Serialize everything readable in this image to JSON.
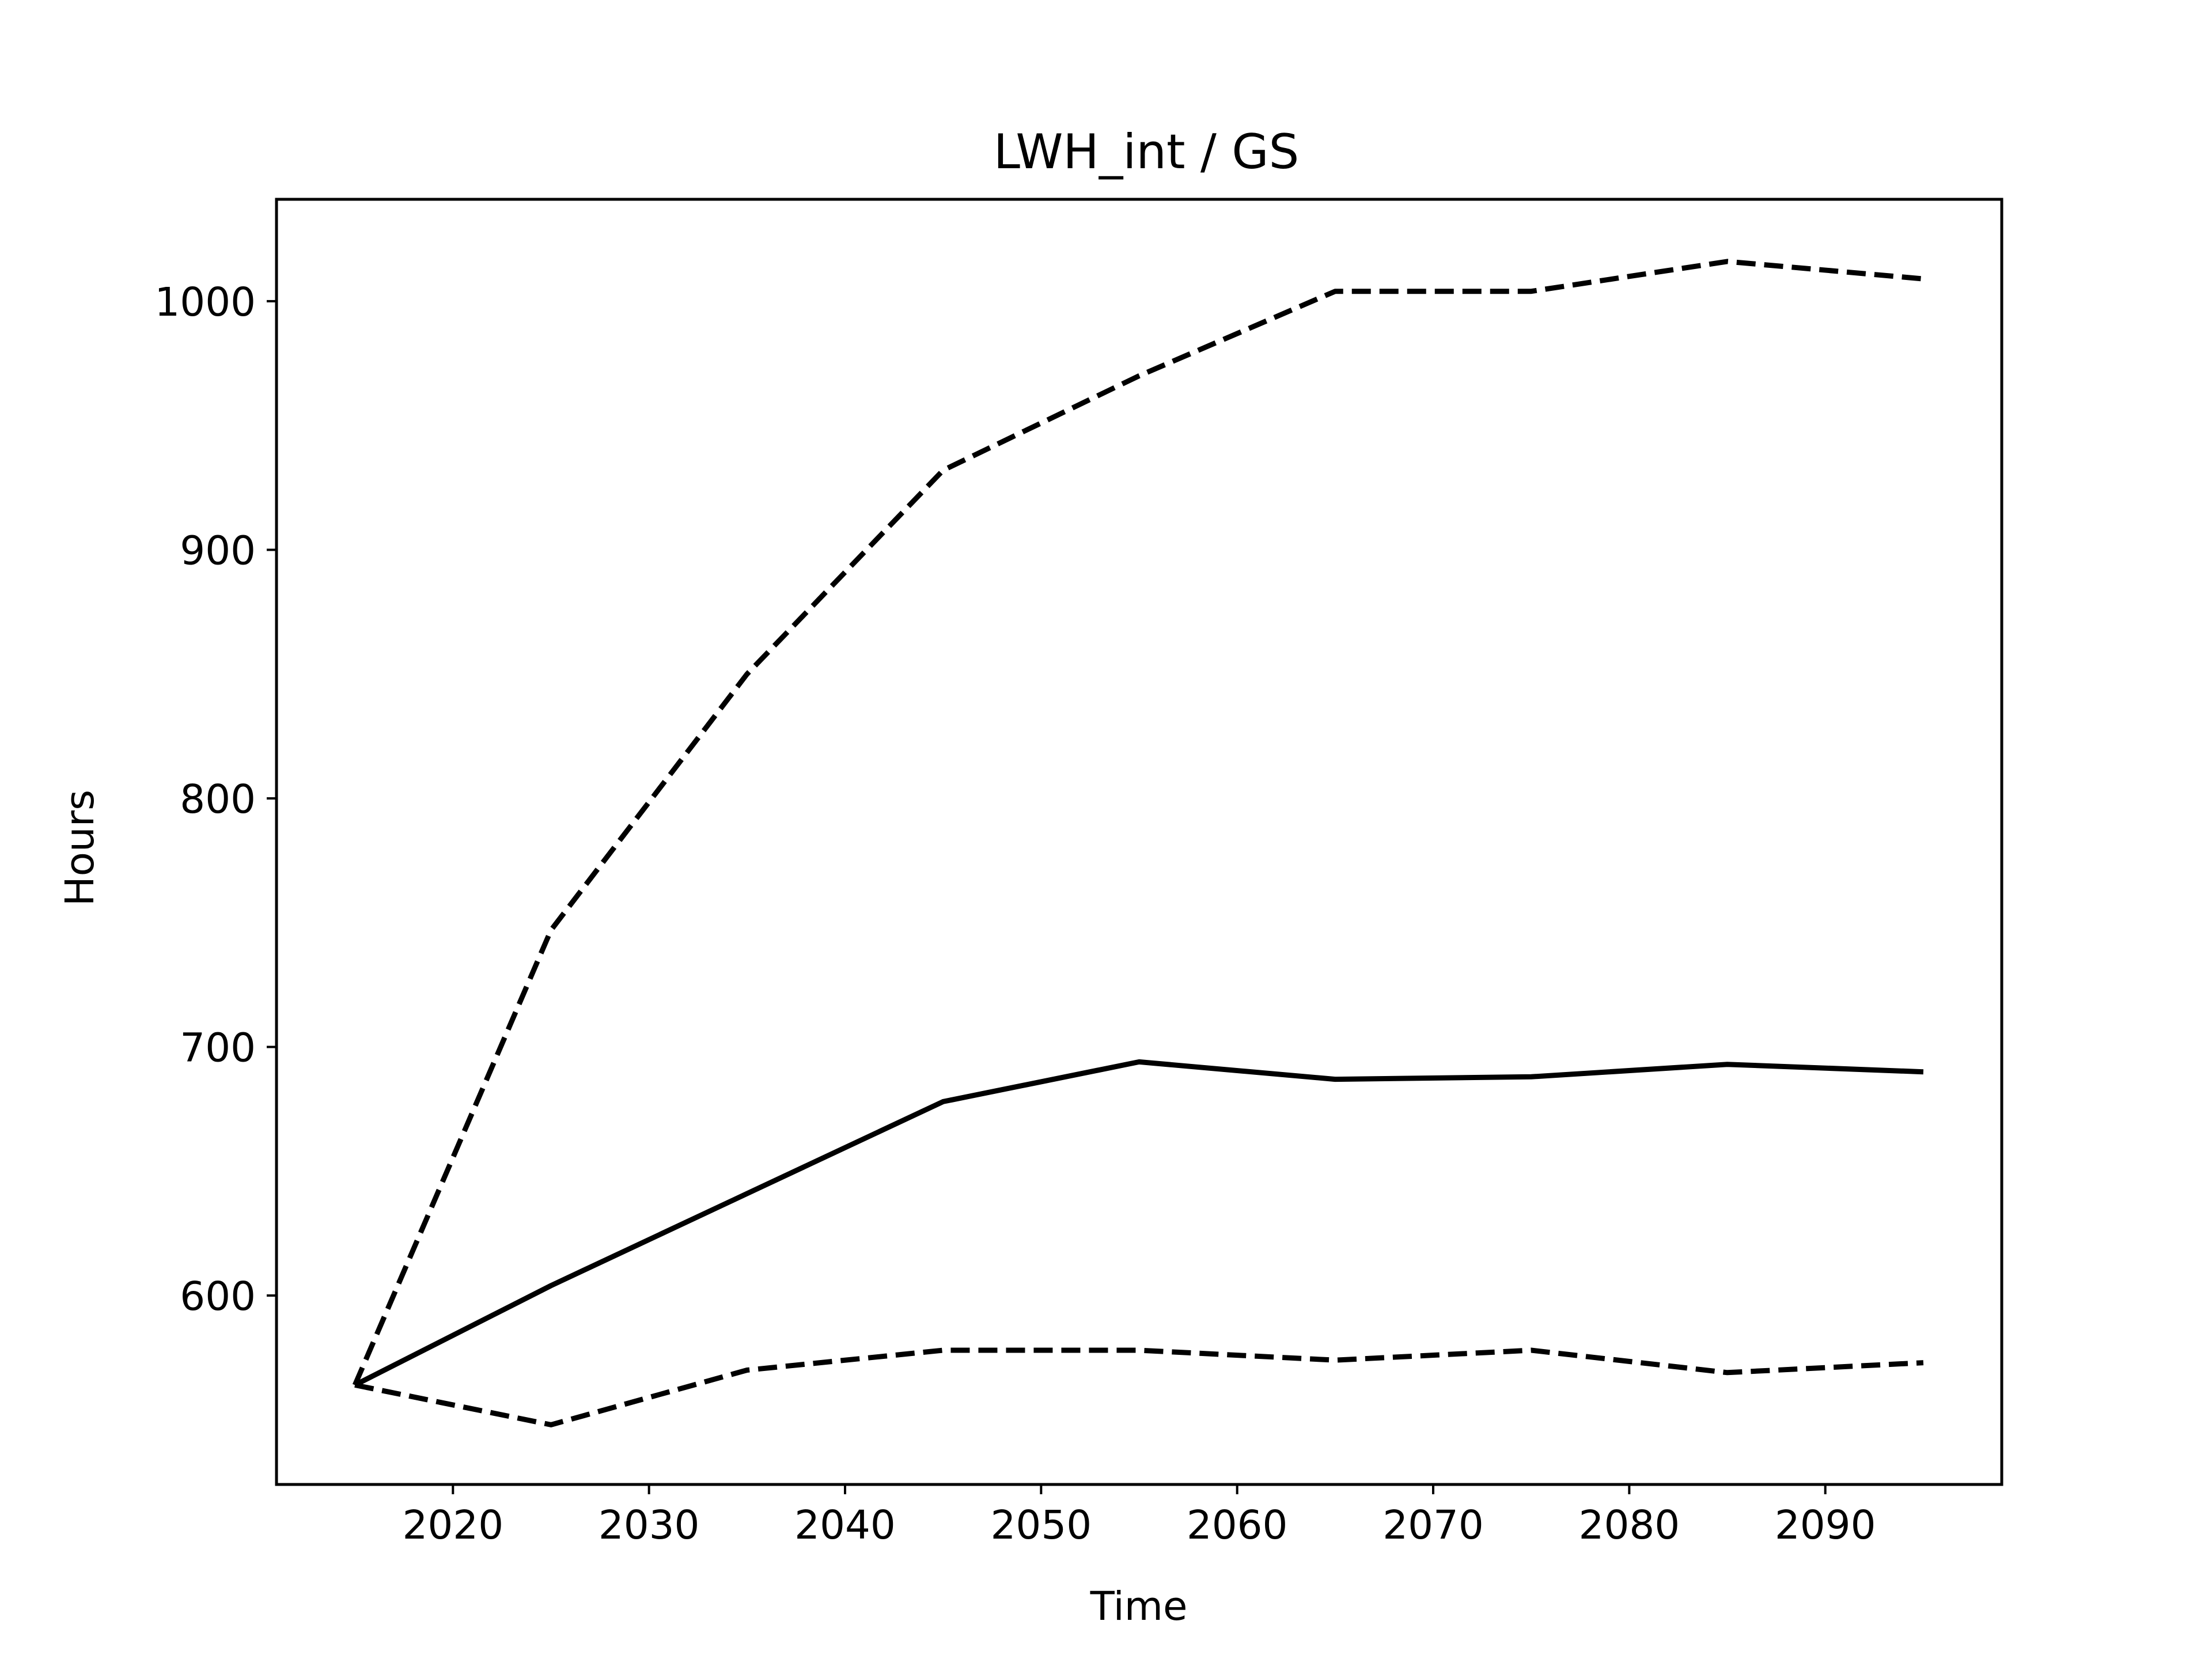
{
  "chart_data": {
    "type": "line",
    "title": "LWH_int / GS",
    "xlabel": "Time",
    "ylabel": "Hours",
    "xlim": [
      2011,
      2099
    ],
    "ylim": [
      524,
      1041
    ],
    "grid": false,
    "x_ticks": [
      "2020",
      "2030",
      "2040",
      "2050",
      "2060",
      "2070",
      "2080",
      "2090"
    ],
    "y_ticks": [
      "600",
      "700",
      "800",
      "900",
      "1000"
    ],
    "x": [
      2015,
      2025,
      2035,
      2045,
      2055,
      2065,
      2075,
      2085,
      2095
    ],
    "series": [
      {
        "style": "dashed",
        "color": "#000000",
        "values": [
          564,
          747,
          850,
          932,
          970,
          1004,
          1004,
          1016,
          1009
        ]
      },
      {
        "style": "solid",
        "color": "#000000",
        "values": [
          564,
          604,
          641,
          678,
          694,
          687,
          688,
          693,
          690
        ]
      },
      {
        "style": "dashed",
        "color": "#000000",
        "values": [
          564,
          548,
          570,
          578,
          578,
          574,
          578,
          569,
          573
        ]
      }
    ]
  }
}
